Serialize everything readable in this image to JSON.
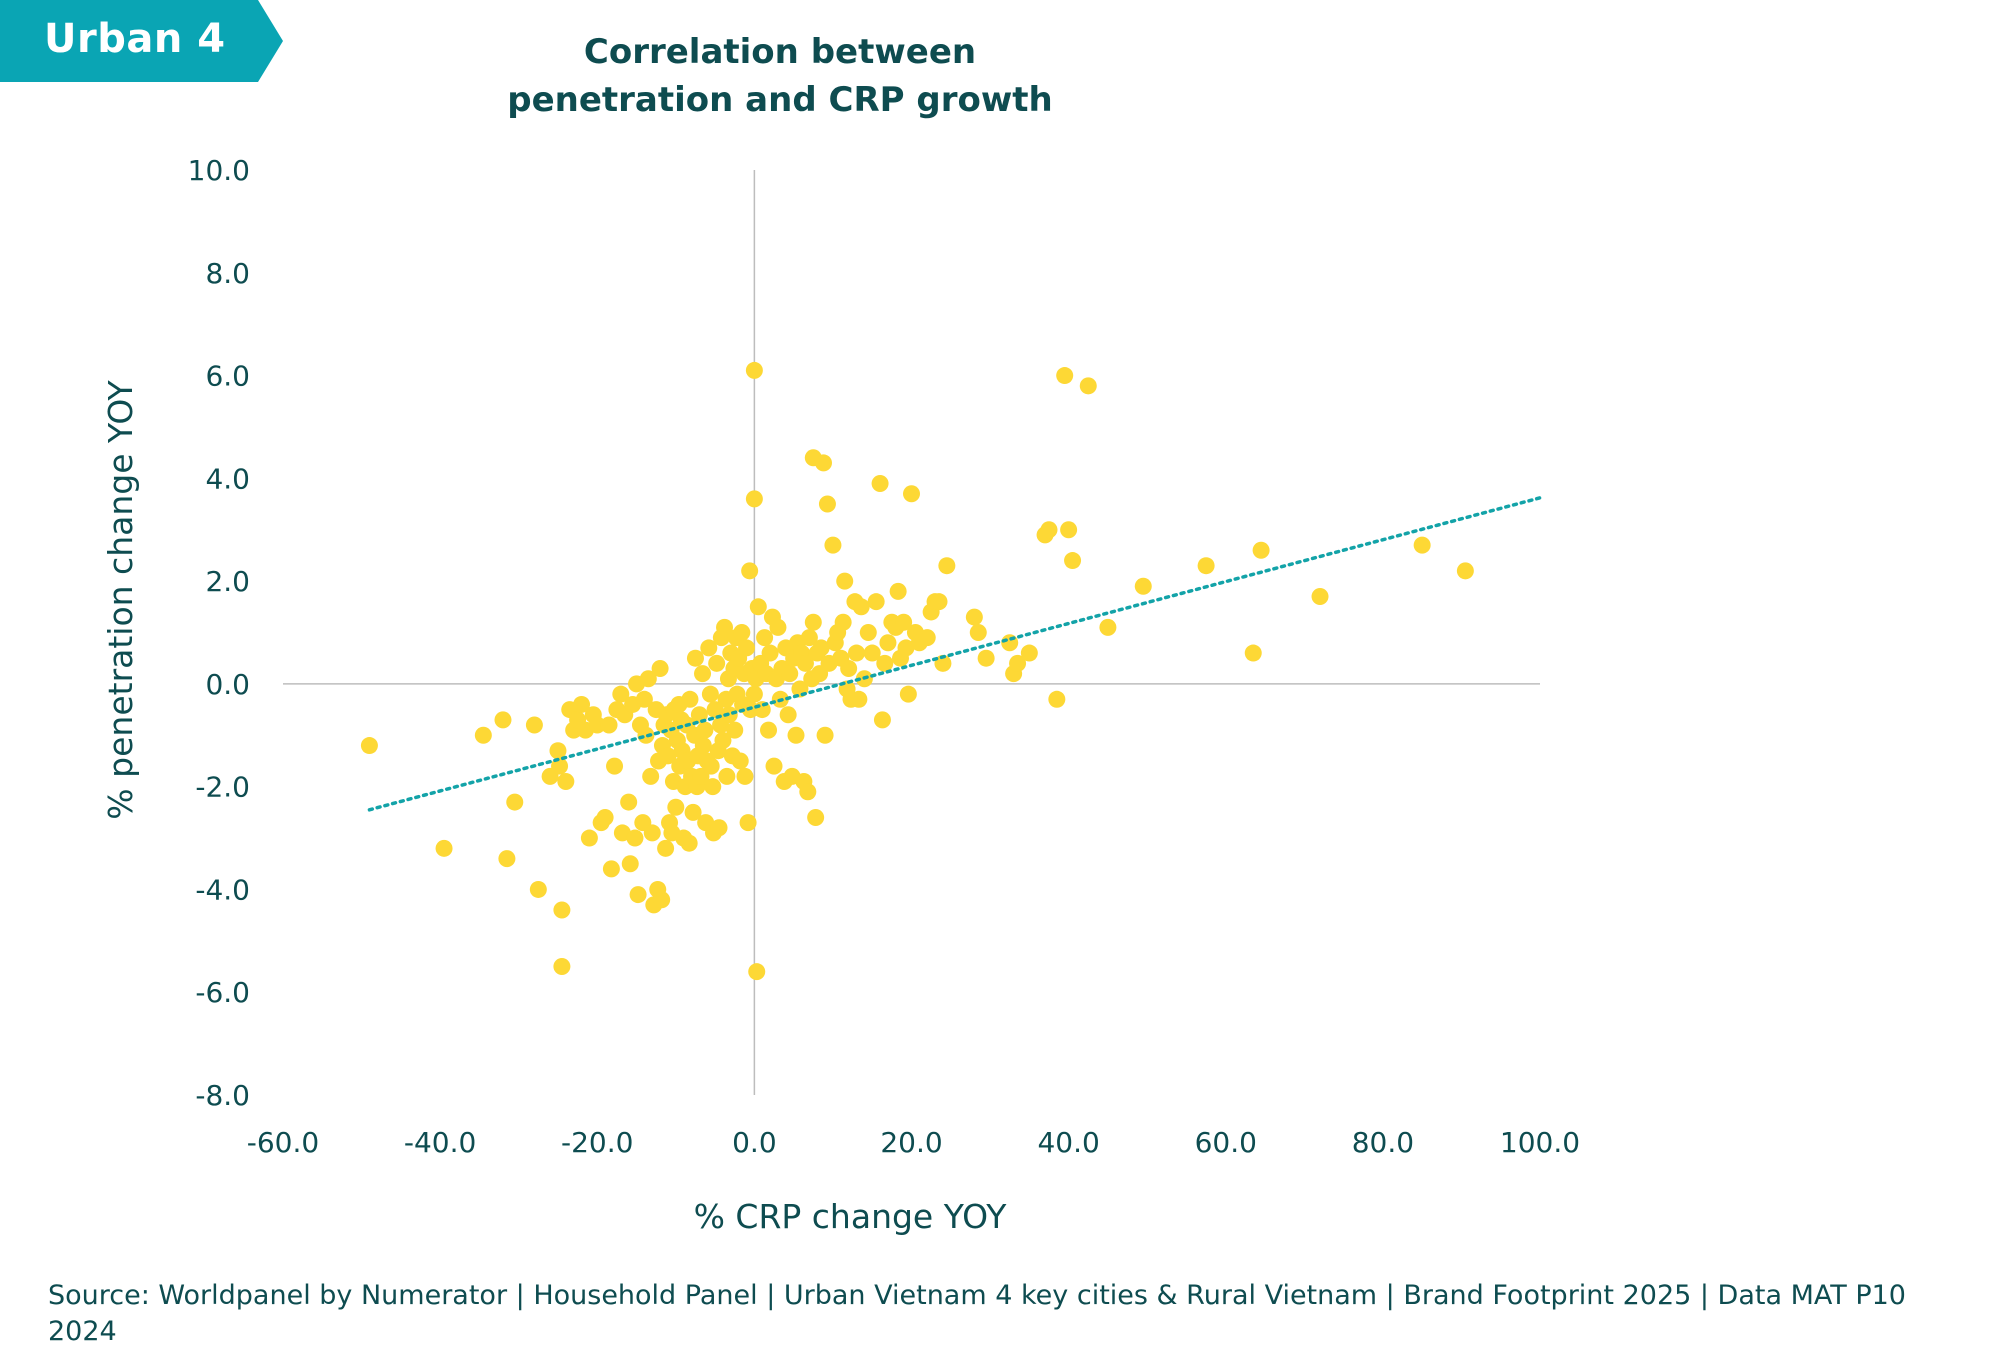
{
  "tag": {
    "label": "Urban 4",
    "color": "#0aa5b4"
  },
  "header": {
    "title_line1": "Correlation between",
    "title_line2": "penetration and CRP growth"
  },
  "source": "Source: Worldpanel by Numerator | Household Panel | Urban Vietnam 4 key cities & Rural Vietnam | Brand Footprint 2025 | Data MAT P10 2024",
  "chart_data": {
    "type": "scatter",
    "xlabel": "% CRP change YOY",
    "ylabel": "% penetration change YOY",
    "xlim": [
      -60,
      100
    ],
    "ylim": [
      -8,
      10
    ],
    "x_ticks": [
      "-60.0",
      "-40.0",
      "-20.0",
      "0.0",
      "20.0",
      "40.0",
      "60.0",
      "80.0",
      "100.0"
    ],
    "y_ticks": [
      "10.0",
      "8.0",
      "6.0",
      "4.0",
      "2.0",
      "0.0",
      "-2.0",
      "-4.0",
      "-6.0",
      "-8.0"
    ],
    "point_color": "#fdd835",
    "trendline_color": "#13a3a8",
    "trendline": {
      "style": "dotted",
      "x": [
        -49,
        100
      ],
      "y": [
        -2.45,
        3.62
      ]
    },
    "points": [
      [
        -49,
        -1.2
      ],
      [
        -39.5,
        -3.2
      ],
      [
        -34.5,
        -1.0
      ],
      [
        -32,
        -0.7
      ],
      [
        -31.5,
        -3.4
      ],
      [
        -30.5,
        -2.3
      ],
      [
        -28,
        -0.8
      ],
      [
        -27.5,
        -4.0
      ],
      [
        -26,
        -1.8
      ],
      [
        -25,
        -1.3
      ],
      [
        -24.8,
        -1.6
      ],
      [
        -24.5,
        -4.4
      ],
      [
        -24.5,
        -5.5
      ],
      [
        -24,
        -1.9
      ],
      [
        -23.5,
        -0.5
      ],
      [
        -23,
        -0.9
      ],
      [
        -22.5,
        -0.7
      ],
      [
        -22,
        -0.4
      ],
      [
        -21.5,
        -0.9
      ],
      [
        -21,
        -3.0
      ],
      [
        -20.5,
        -0.6
      ],
      [
        -20,
        -0.8
      ],
      [
        -19.5,
        -2.7
      ],
      [
        -19,
        -2.6
      ],
      [
        -18.5,
        -0.8
      ],
      [
        -18.2,
        -3.6
      ],
      [
        -17.8,
        -1.6
      ],
      [
        -17.5,
        -0.5
      ],
      [
        -17,
        -0.2
      ],
      [
        -16.8,
        -2.9
      ],
      [
        -16.5,
        -0.6
      ],
      [
        -16,
        -2.3
      ],
      [
        -15.8,
        -3.5
      ],
      [
        -15.5,
        -0.4
      ],
      [
        -15.2,
        -3.0
      ],
      [
        -15,
        0.0
      ],
      [
        -14.8,
        -4.1
      ],
      [
        -14.5,
        -0.8
      ],
      [
        -14.2,
        -2.7
      ],
      [
        -14,
        -0.3
      ],
      [
        -13.8,
        -1.0
      ],
      [
        -13.5,
        0.1
      ],
      [
        -13.2,
        -1.8
      ],
      [
        -13,
        -2.9
      ],
      [
        -12.8,
        -4.3
      ],
      [
        -12.5,
        -0.5
      ],
      [
        -12.3,
        -4.0
      ],
      [
        -12.2,
        -1.5
      ],
      [
        -12,
        0.3
      ],
      [
        -11.8,
        -4.2
      ],
      [
        -11.7,
        -1.2
      ],
      [
        -11.5,
        -0.8
      ],
      [
        -11.3,
        -3.2
      ],
      [
        -11.2,
        -0.6
      ],
      [
        -11,
        -1.4
      ],
      [
        -10.8,
        -2.7
      ],
      [
        -10.6,
        -0.9
      ],
      [
        -10.5,
        -2.9
      ],
      [
        -10.3,
        -1.9
      ],
      [
        -10.2,
        -0.5
      ],
      [
        -10,
        -2.4
      ],
      [
        -9.8,
        -1.1
      ],
      [
        -9.6,
        -0.4
      ],
      [
        -9.5,
        -1.6
      ],
      [
        -9.3,
        -0.7
      ],
      [
        -9.2,
        -1.3
      ],
      [
        -9,
        -3.0
      ],
      [
        -8.8,
        -2.0
      ],
      [
        -8.6,
        -0.8
      ],
      [
        -8.5,
        -1.5
      ],
      [
        -8.3,
        -3.1
      ],
      [
        -8.2,
        -0.3
      ],
      [
        -8,
        -1.8
      ],
      [
        -7.8,
        -2.5
      ],
      [
        -7.6,
        -1.0
      ],
      [
        -7.5,
        0.5
      ],
      [
        -7.3,
        -2.0
      ],
      [
        -7.2,
        -1.4
      ],
      [
        -7,
        -0.6
      ],
      [
        -6.8,
        -1.8
      ],
      [
        -6.6,
        0.2
      ],
      [
        -6.5,
        -1.2
      ],
      [
        -6.3,
        -0.9
      ],
      [
        -6.2,
        -2.7
      ],
      [
        -6,
        -1.5
      ],
      [
        -5.8,
        0.7
      ],
      [
        -5.6,
        -0.2
      ],
      [
        -5.5,
        -1.6
      ],
      [
        -5.3,
        -2.0
      ],
      [
        -5.2,
        -2.9
      ],
      [
        -5,
        -0.5
      ],
      [
        -4.8,
        0.4
      ],
      [
        -4.6,
        -1.3
      ],
      [
        -4.5,
        -2.8
      ],
      [
        -4.3,
        -0.8
      ],
      [
        -4.2,
        0.9
      ],
      [
        -4,
        -1.1
      ],
      [
        -3.8,
        1.1
      ],
      [
        -3.6,
        -0.3
      ],
      [
        -3.5,
        -1.8
      ],
      [
        -3.3,
        0.1
      ],
      [
        -3.2,
        -0.6
      ],
      [
        -3,
        0.6
      ],
      [
        -2.8,
        -1.4
      ],
      [
        -2.6,
        0.3
      ],
      [
        -2.5,
        -0.9
      ],
      [
        -2.3,
        0.9
      ],
      [
        -2.2,
        -0.2
      ],
      [
        -2,
        0.5
      ],
      [
        -1.8,
        -1.5
      ],
      [
        -1.6,
        1.0
      ],
      [
        -1.5,
        -0.4
      ],
      [
        -1.3,
        0.2
      ],
      [
        -1.2,
        -1.8
      ],
      [
        -1,
        0.7
      ],
      [
        -0.8,
        -2.7
      ],
      [
        -0.6,
        2.2
      ],
      [
        -0.5,
        -0.5
      ],
      [
        -0.3,
        0.3
      ],
      [
        0,
        6.1
      ],
      [
        0,
        3.6
      ],
      [
        0,
        -0.2
      ],
      [
        0.2,
        0.1
      ],
      [
        0.3,
        -5.6
      ],
      [
        0.5,
        1.5
      ],
      [
        0.8,
        0.4
      ],
      [
        1,
        -0.5
      ],
      [
        1.3,
        0.9
      ],
      [
        1.5,
        0.2
      ],
      [
        1.8,
        -0.9
      ],
      [
        2,
        0.6
      ],
      [
        2.3,
        1.3
      ],
      [
        2.5,
        -1.6
      ],
      [
        2.8,
        0.1
      ],
      [
        3,
        1.1
      ],
      [
        3.3,
        -0.3
      ],
      [
        3.5,
        0.3
      ],
      [
        3.8,
        -1.9
      ],
      [
        4,
        0.7
      ],
      [
        4.3,
        -0.6
      ],
      [
        4.5,
        0.2
      ],
      [
        4.8,
        -1.8
      ],
      [
        5,
        0.5
      ],
      [
        5.3,
        -1.0
      ],
      [
        5.5,
        0.8
      ],
      [
        5.8,
        -0.1
      ],
      [
        6,
        0.6
      ],
      [
        6.3,
        -1.9
      ],
      [
        6.5,
        0.4
      ],
      [
        6.8,
        -2.1
      ],
      [
        7,
        0.9
      ],
      [
        7.3,
        0.1
      ],
      [
        7.5,
        1.2
      ],
      [
        7.5,
        4.4
      ],
      [
        7.8,
        -2.6
      ],
      [
        8,
        0.6
      ],
      [
        8.3,
        0.2
      ],
      [
        8.5,
        0.7
      ],
      [
        8.8,
        4.3
      ],
      [
        9,
        -1.0
      ],
      [
        9.3,
        3.5
      ],
      [
        9.5,
        0.4
      ],
      [
        10,
        2.7
      ],
      [
        10.3,
        0.8
      ],
      [
        10.6,
        1.0
      ],
      [
        11,
        0.5
      ],
      [
        11.3,
        1.2
      ],
      [
        11.5,
        2.0
      ],
      [
        11.8,
        -0.1
      ],
      [
        12,
        0.3
      ],
      [
        12.3,
        -0.3
      ],
      [
        12.8,
        1.6
      ],
      [
        13,
        0.6
      ],
      [
        13.3,
        -0.3
      ],
      [
        13.6,
        1.5
      ],
      [
        14,
        0.1
      ],
      [
        14.5,
        1.0
      ],
      [
        15,
        0.6
      ],
      [
        15.5,
        1.6
      ],
      [
        16,
        3.9
      ],
      [
        16.3,
        -0.7
      ],
      [
        16.6,
        0.4
      ],
      [
        17,
        0.8
      ],
      [
        17.5,
        1.2
      ],
      [
        18,
        1.1
      ],
      [
        18.3,
        1.8
      ],
      [
        18.6,
        0.5
      ],
      [
        19,
        1.2
      ],
      [
        19.3,
        0.7
      ],
      [
        19.6,
        -0.2
      ],
      [
        20,
        3.7
      ],
      [
        20.5,
        1.0
      ],
      [
        21,
        0.8
      ],
      [
        22,
        0.9
      ],
      [
        22.5,
        1.4
      ],
      [
        23,
        1.6
      ],
      [
        23.5,
        1.6
      ],
      [
        24,
        0.4
      ],
      [
        24.5,
        2.3
      ],
      [
        28,
        1.3
      ],
      [
        28.5,
        1.0
      ],
      [
        29.5,
        0.5
      ],
      [
        32.5,
        0.8
      ],
      [
        33,
        0.2
      ],
      [
        33.5,
        0.4
      ],
      [
        35,
        0.6
      ],
      [
        37,
        2.9
      ],
      [
        37.5,
        3.0
      ],
      [
        38.5,
        -0.3
      ],
      [
        39.5,
        6.0
      ],
      [
        40,
        3.0
      ],
      [
        40.5,
        2.4
      ],
      [
        42.5,
        5.8
      ],
      [
        45,
        1.1
      ],
      [
        49.5,
        1.9
      ],
      [
        57.5,
        2.3
      ],
      [
        63.5,
        0.6
      ],
      [
        64.5,
        2.6
      ],
      [
        72,
        1.7
      ],
      [
        85,
        2.7
      ],
      [
        90.5,
        2.2
      ]
    ]
  }
}
